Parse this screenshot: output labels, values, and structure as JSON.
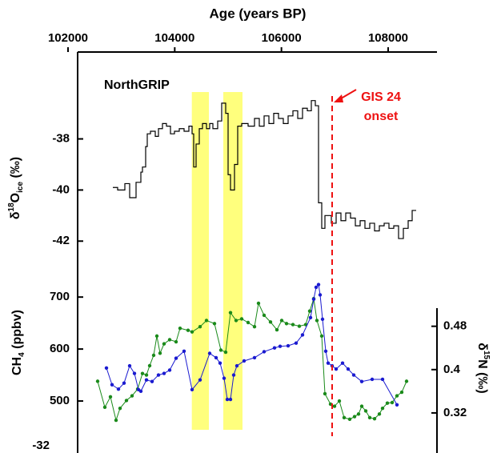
{
  "chart_data": [
    {
      "type": "step",
      "title": "Age (years BP)",
      "label": "NorthGRIP",
      "y_label": [
        "δ",
        "18",
        "O",
        "ice",
        " (‰)"
      ],
      "xlim": [
        102180,
        108915
      ],
      "xticks": [
        102000,
        104000,
        106000,
        108000
      ],
      "ylim": [
        -42.9,
        -34.6
      ],
      "yticks": [
        -42,
        -40,
        -38
      ],
      "spans": [
        [
          104320,
          104640
        ],
        [
          104910,
          105270
        ]
      ],
      "span_color": "#ffff66",
      "marker_x": 106950,
      "marker_color": "#ee1111",
      "annotation": [
        "GIS 24",
        "onset"
      ],
      "series": [
        {
          "color": "#000000",
          "x": [
            102840,
            102930,
            103065,
            103155,
            103275,
            103365,
            103395,
            103455,
            103485,
            103545,
            103635,
            103695,
            103770,
            103845,
            103920,
            103995,
            104085,
            104175,
            104265,
            104325,
            104355,
            104400,
            104460,
            104520,
            104595,
            104655,
            104715,
            104805,
            104880,
            104955,
            105000,
            105045,
            105120,
            105180,
            105255,
            105375,
            105495,
            105585,
            105675,
            105765,
            105855,
            105945,
            106035,
            106125,
            106215,
            106305,
            106395,
            106485,
            106560,
            106635,
            106695,
            106755,
            106815,
            106935,
            107025,
            107115,
            107205,
            107295,
            107385,
            107475,
            107565,
            107655,
            107745,
            107835,
            107925,
            108015,
            108105,
            108195,
            108285,
            108375,
            108450,
            108525
          ],
          "values": [
            -39.9,
            -40,
            -39.75,
            -40.3,
            -39.7,
            -39.3,
            -39.1,
            -38.3,
            -37.8,
            -37.7,
            -37.9,
            -37.6,
            -37.4,
            -37.5,
            -37.8,
            -37.7,
            -37.6,
            -37.7,
            -37.5,
            -37.8,
            -39.1,
            -38.2,
            -37.6,
            -37.4,
            -37.6,
            -37.4,
            -37.6,
            -37.3,
            -36.6,
            -37,
            -39.4,
            -40,
            -39,
            -37.5,
            -37.4,
            -37.5,
            -37.2,
            -37.5,
            -37.1,
            -37.4,
            -37,
            -37.2,
            -37.4,
            -37.1,
            -36.9,
            -37.2,
            -36.8,
            -36.9,
            -36.5,
            -36.7,
            -40.5,
            -41.5,
            -41,
            -41.3,
            -40.9,
            -41.2,
            -40.9,
            -41.1,
            -41.4,
            -41.2,
            -41.5,
            -41.3,
            -41.6,
            -41.4,
            -41.3,
            -41.5,
            -41.4,
            -41.9,
            -41.5,
            -41.2,
            -40.8,
            -40.8
          ]
        }
      ]
    },
    {
      "type": "line",
      "y_label": [
        "CH",
        "4",
        " (ppbv)"
      ],
      "y2_label": [
        "δ",
        "15",
        "N (‰)"
      ],
      "xlim": [
        102180,
        108915
      ],
      "ylim": [
        400,
        748
      ],
      "yticks": [
        500,
        600,
        700
      ],
      "stray_tick_label": "-32",
      "y2lim": [
        0.246,
        0.58
      ],
      "y2ticks": [
        0.32,
        0.4,
        0.48
      ],
      "series": [
        {
          "color": "#1a8a1a",
          "x": [
            102555,
            102690,
            102795,
            102900,
            102975,
            103095,
            103200,
            103305,
            103395,
            103470,
            103530,
            103605,
            103665,
            103725,
            103800,
            103905,
            104025,
            104100,
            104250,
            104325,
            104475,
            104595,
            104745,
            104865,
            104955,
            105045,
            105150,
            105255,
            105375,
            105495,
            105570,
            105675,
            105795,
            105915,
            106005,
            106095,
            106215,
            106335,
            106455,
            106530,
            106605,
            106665,
            106755,
            106815,
            106920,
            106995,
            107085,
            107175,
            107280,
            107370,
            107445,
            107505,
            107580,
            107655,
            107745,
            107835,
            107895,
            107985,
            108075,
            108165,
            108255,
            108345
          ],
          "values": [
            538,
            488,
            508,
            463,
            486,
            501,
            510,
            523,
            553,
            550,
            568,
            588,
            625,
            592,
            610,
            618,
            614,
            640,
            636,
            633,
            643,
            655,
            649,
            598,
            594,
            670,
            655,
            658,
            651,
            643,
            688,
            665,
            652,
            637,
            655,
            649,
            647,
            644,
            647,
            673,
            697,
            655,
            625,
            514,
            494,
            490,
            500,
            468,
            465,
            470,
            475,
            490,
            481,
            468,
            466,
            475,
            486,
            496,
            497,
            510,
            517,
            538
          ]
        },
        {
          "color": "#1a1ad0",
          "axis": "y2",
          "x": [
            102720,
            102825,
            102945,
            103050,
            103155,
            103245,
            103320,
            103365,
            103470,
            103575,
            103695,
            103800,
            103905,
            104025,
            104175,
            104325,
            104475,
            104655,
            104775,
            104850,
            104925,
            104985,
            105045,
            105105,
            105165,
            105300,
            105495,
            105675,
            105870,
            105975,
            106125,
            106275,
            106395,
            106545,
            106605,
            106650,
            106695,
            106725,
            106770,
            106830,
            106875,
            106950,
            107025,
            107145,
            107250,
            107355,
            107505,
            107700,
            107895,
            108165
          ],
          "values": [
            0.403,
            0.372,
            0.364,
            0.375,
            0.407,
            0.393,
            0.363,
            0.36,
            0.381,
            0.378,
            0.39,
            0.393,
            0.399,
            0.421,
            0.434,
            0.363,
            0.381,
            0.43,
            0.422,
            0.412,
            0.384,
            0.345,
            0.345,
            0.39,
            0.407,
            0.416,
            0.422,
            0.433,
            0.44,
            0.443,
            0.444,
            0.449,
            0.464,
            0.496,
            0.53,
            0.552,
            0.557,
            0.538,
            0.493,
            0.434,
            0.412,
            0.407,
            0.401,
            0.412,
            0.401,
            0.39,
            0.378,
            0.382,
            0.382,
            0.335
          ]
        }
      ]
    }
  ]
}
